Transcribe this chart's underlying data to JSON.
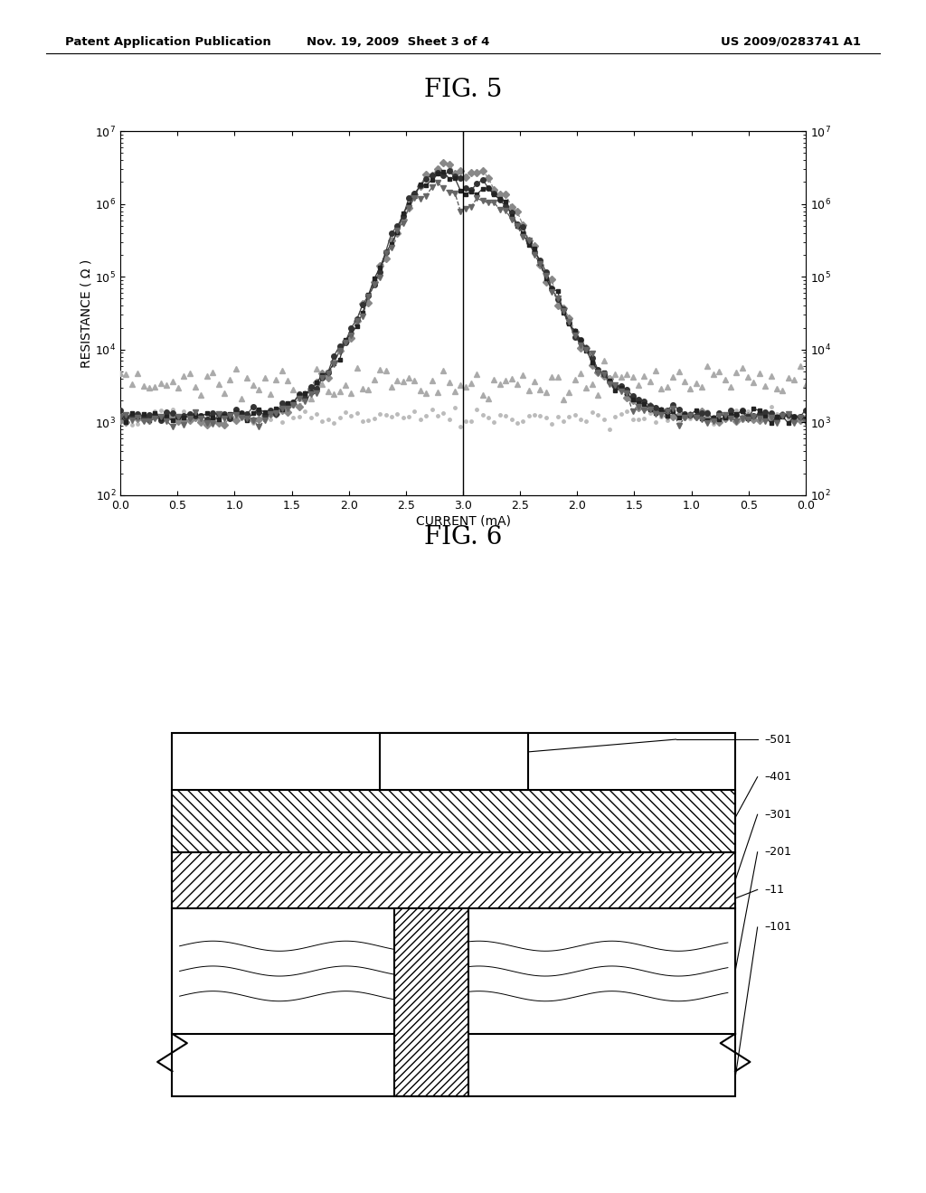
{
  "header_left": "Patent Application Publication",
  "header_mid": "Nov. 19, 2009  Sheet 3 of 4",
  "header_right": "US 2009/0283741 A1",
  "fig5_title": "FIG. 5",
  "fig6_title": "FIG. 6",
  "xlabel": "CURRENT (mA)",
  "ylabel": "RESISTANCE ( Ω )",
  "background_color": "#ffffff",
  "all_tick_pos": [
    0,
    0.5,
    1.0,
    1.5,
    2.0,
    2.5,
    3.0,
    3.5,
    4.0,
    4.5,
    5.0,
    5.5,
    6.0
  ],
  "all_tick_labels": [
    "0.0",
    "0.5",
    "1.0",
    "1.5",
    "2.0",
    "2.5",
    "3.0",
    "2.5",
    "2.0",
    "1.5",
    "1.0",
    "0.5",
    "0.0"
  ],
  "schematic_labels": [
    "501",
    "401",
    "301",
    "201",
    "11",
    "101"
  ]
}
